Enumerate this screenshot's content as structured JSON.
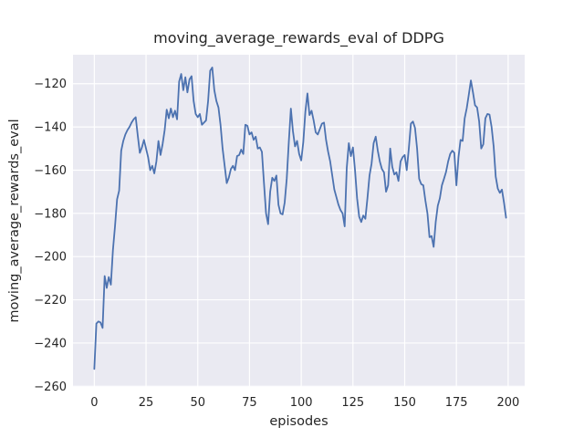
{
  "colors": {
    "line": "#4c72b0",
    "plot_background": "#eaeaf2",
    "grid": "#ffffff",
    "text": "#262626",
    "figure_background": "#ffffff"
  },
  "chart_data": {
    "type": "line",
    "title": "moving_average_rewards_eval of DDPG",
    "xlabel": "episodes",
    "ylabel": "moving_average_rewards_eval",
    "legend": false,
    "grid": true,
    "grid_style": "seaborn-darkgrid",
    "xlim": [
      -10.3,
      208
    ],
    "ylim": [
      -260.3,
      -106.6
    ],
    "x_ticks": [
      0,
      25,
      50,
      75,
      100,
      125,
      150,
      175,
      200
    ],
    "x_tick_labels": [
      "0",
      "25",
      "50",
      "75",
      "100",
      "125",
      "150",
      "175",
      "200"
    ],
    "y_ticks": [
      -120,
      -140,
      -160,
      -180,
      -200,
      -220,
      -240,
      -260
    ],
    "y_tick_labels": [
      "−120",
      "−140",
      "−160",
      "−180",
      "−200",
      "−220",
      "−240",
      "−260"
    ],
    "series": [
      {
        "name": "moving_average_rewards_eval",
        "x_is_episode_index": true,
        "x_start": 0,
        "x_step": 1,
        "values": [
          -252,
          -231,
          -230,
          -230.5,
          -233,
          -209,
          -214.5,
          -209.5,
          -213,
          -197,
          -186,
          -173.5,
          -169.5,
          -151,
          -146.5,
          -143.5,
          -141.5,
          -140,
          -138,
          -136.5,
          -135.5,
          -144,
          -152,
          -149.5,
          -146,
          -150,
          -154,
          -160,
          -158,
          -161.5,
          -156,
          -146.5,
          -153,
          -148,
          -141.5,
          -132,
          -136,
          -131.5,
          -135.5,
          -132.5,
          -136.5,
          -119,
          -115.5,
          -123,
          -117,
          -124,
          -118,
          -116.5,
          -128,
          -134,
          -135.5,
          -134,
          -139,
          -138,
          -137,
          -128,
          -114,
          -112.5,
          -123,
          -128,
          -131,
          -139,
          -150,
          -158,
          -166,
          -163.5,
          -159.5,
          -158,
          -160,
          -153.5,
          -153,
          -150.5,
          -152.5,
          -139,
          -139.5,
          -143.5,
          -142.5,
          -146,
          -144.5,
          -150,
          -149.5,
          -151.5,
          -166,
          -180,
          -185,
          -170,
          -163.5,
          -165,
          -162.5,
          -176,
          -180,
          -180.5,
          -175,
          -164,
          -147,
          -131.5,
          -142,
          -149,
          -146.5,
          -152.5,
          -155.5,
          -147,
          -133,
          -124.5,
          -134.5,
          -132.5,
          -137,
          -142.5,
          -143.5,
          -141,
          -138.5,
          -138,
          -146,
          -151.5,
          -156,
          -162.5,
          -169,
          -172.5,
          -176,
          -178.5,
          -180,
          -186,
          -159,
          -147.5,
          -153.5,
          -149.5,
          -160,
          -173,
          -181.5,
          -184,
          -181,
          -182.5,
          -173,
          -162.5,
          -157,
          -147.5,
          -144.5,
          -151,
          -156,
          -159.5,
          -161,
          -170,
          -167,
          -150,
          -158.5,
          -162,
          -161,
          -165,
          -156,
          -154,
          -153,
          -160,
          -150,
          -138.5,
          -137.5,
          -140.5,
          -150,
          -164,
          -166.5,
          -167,
          -174,
          -180,
          -191,
          -190.5,
          -195.5,
          -184,
          -176.5,
          -173,
          -167,
          -164,
          -160.8,
          -156,
          -152.5,
          -151,
          -152,
          -167,
          -154,
          -146,
          -146.5,
          -136,
          -131.3,
          -125,
          -118.5,
          -124,
          -130,
          -131,
          -137.5,
          -150,
          -148,
          -136,
          -134,
          -134.3,
          -140,
          -149,
          -163,
          -168.5,
          -170.5,
          -169,
          -175,
          -182
        ]
      }
    ]
  }
}
